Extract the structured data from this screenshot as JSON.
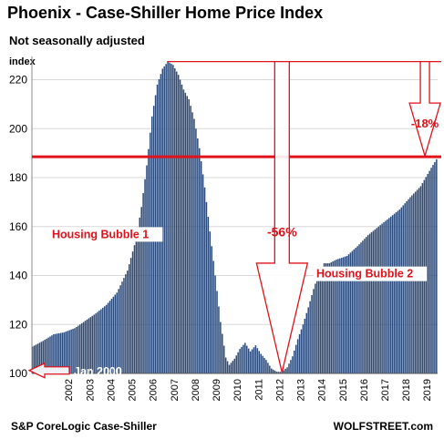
{
  "header": {
    "title": "Phoenix - Case-Shiller Home Price Index",
    "subtitle": "Not seasonally adjusted"
  },
  "footer": {
    "source": "S&P CoreLogic Case-Shiller",
    "brand": "WOLFSTREET.com"
  },
  "colors": {
    "bars": "#2b4a7a",
    "annotation": "#e0121b"
  },
  "chart_data": {
    "type": "bar",
    "ylabel": "index",
    "ylim": [
      100,
      228
    ],
    "yticks": [
      100,
      120,
      140,
      160,
      180,
      200,
      220
    ],
    "grid": true,
    "x_start": "Jan 2000",
    "x_tick_labels": [
      "2002",
      "2003",
      "2004",
      "2005",
      "2006",
      "2007",
      "2008",
      "2009",
      "2010",
      "2011",
      "2012",
      "2013",
      "2014",
      "2015",
      "2016",
      "2017",
      "2018",
      "2019"
    ],
    "anchors": [
      [
        "2000-01",
        111.0
      ],
      [
        "2000-07",
        113.3
      ],
      [
        "2001-01",
        116.0
      ],
      [
        "2001-07",
        116.8
      ],
      [
        "2002-01",
        118.5
      ],
      [
        "2002-07",
        121.5
      ],
      [
        "2003-01",
        124.5
      ],
      [
        "2003-07",
        128.0
      ],
      [
        "2004-01",
        133.0
      ],
      [
        "2004-07",
        142.0
      ],
      [
        "2004-12",
        155.0
      ],
      [
        "2005-03",
        168.0
      ],
      [
        "2005-06",
        185.0
      ],
      [
        "2005-09",
        205.0
      ],
      [
        "2005-12",
        218.0
      ],
      [
        "2006-03",
        224.5
      ],
      [
        "2006-06",
        227.4
      ],
      [
        "2006-09",
        226.0
      ],
      [
        "2006-12",
        222.0
      ],
      [
        "2007-03",
        216.0
      ],
      [
        "2007-06",
        212.0
      ],
      [
        "2007-09",
        204.0
      ],
      [
        "2007-12",
        192.0
      ],
      [
        "2008-03",
        176.0
      ],
      [
        "2008-06",
        158.0
      ],
      [
        "2008-09",
        140.0
      ],
      [
        "2008-12",
        121.0
      ],
      [
        "2009-03",
        106.5
      ],
      [
        "2009-05",
        103.5
      ],
      [
        "2009-08",
        106.0
      ],
      [
        "2009-11",
        110.0
      ],
      [
        "2010-02",
        112.5
      ],
      [
        "2010-05",
        109.0
      ],
      [
        "2010-08",
        111.5
      ],
      [
        "2010-11",
        108.0
      ],
      [
        "2011-02",
        105.5
      ],
      [
        "2011-05",
        102.0
      ],
      [
        "2011-08",
        100.7
      ],
      [
        "2011-11",
        100.6
      ],
      [
        "2012-02",
        102.5
      ],
      [
        "2012-05",
        107.0
      ],
      [
        "2012-08",
        114.0
      ],
      [
        "2012-11",
        120.0
      ],
      [
        "2013-02",
        127.0
      ],
      [
        "2013-05",
        134.5
      ],
      [
        "2013-08",
        141.0
      ],
      [
        "2013-11",
        145.0
      ],
      [
        "2014-02",
        145.0
      ],
      [
        "2014-06",
        146.5
      ],
      [
        "2014-12",
        148.0
      ],
      [
        "2015-06",
        152.0
      ],
      [
        "2015-12",
        156.5
      ],
      [
        "2016-06",
        160.0
      ],
      [
        "2016-12",
        163.5
      ],
      [
        "2017-06",
        167.0
      ],
      [
        "2017-12",
        172.0
      ],
      [
        "2018-06",
        176.5
      ],
      [
        "2018-12",
        184.0
      ],
      [
        "2019-03",
        187.5
      ]
    ],
    "annotations": {
      "peak_line_value": 227.4,
      "current_line_value": 188.5,
      "drop_from_peak_label": "-56%",
      "drop_to_now_label": "-18%",
      "bubble1_label": "Housing Bubble 1",
      "bubble2_label": "Housing Bubble 2",
      "start_label": "Jan 2000"
    }
  }
}
